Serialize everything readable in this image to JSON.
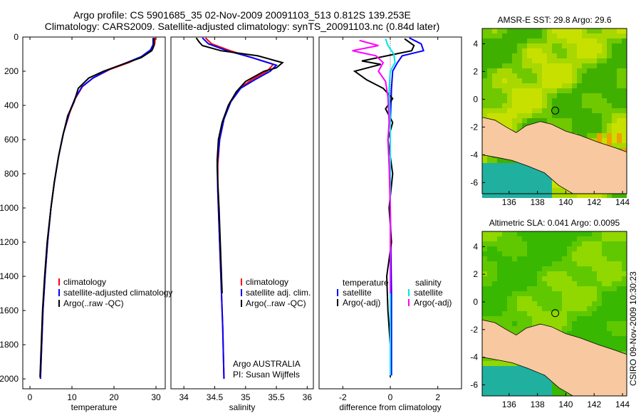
{
  "title_line1": "Argo profile: CS 5901685_35 02-Nov-2009 20091103_513 0.812S 139.253E",
  "title_line2": "Climatology: CARS2009. Satellite-adjusted climatology: synTS_20091103.nc (0.84d later)",
  "side_stamp": "CSIRO 09-Nov-2009 10:30:23",
  "colors": {
    "climatology": "#ff0000",
    "satellite": "#0000ff",
    "argo": "#000000",
    "sal_satellite": "#00e5e5",
    "sal_argo": "#ff00ff",
    "land": "#f8c8a0",
    "sea_deep": "#20b0a0"
  },
  "chart_data": [
    {
      "type": "line",
      "xlabel": "temperature",
      "ylabel": "",
      "xlim": [
        -1.7,
        32.2
      ],
      "ylim": [
        2058,
        0
      ],
      "xticks": [
        "0",
        "10",
        "20",
        "30"
      ],
      "xtick_values": [
        0,
        10,
        20,
        30
      ],
      "yticks": [
        "0",
        "200",
        "400",
        "600",
        "800",
        "1000",
        "1200",
        "1400",
        "1600",
        "1800",
        "2000"
      ],
      "ytick_values": [
        0,
        200,
        400,
        600,
        800,
        1000,
        1200,
        1400,
        1600,
        1800,
        2000
      ],
      "legend": [
        "climatology",
        "satellite-adjusted climatology",
        "Argo(..raw -QC)"
      ],
      "series": [
        {
          "name": "climatology",
          "color": "#ff0000",
          "points": [
            [
              29.8,
              5
            ],
            [
              29.7,
              40
            ],
            [
              29.2,
              70
            ],
            [
              27,
              110
            ],
            [
              23.5,
              150
            ],
            [
              19,
              190
            ],
            [
              15,
              240
            ],
            [
              12.5,
              290
            ],
            [
              10.8,
              360
            ],
            [
              9.5,
              440
            ],
            [
              8,
              560
            ],
            [
              6.8,
              700
            ],
            [
              5.8,
              850
            ],
            [
              5,
              1000
            ],
            [
              4.2,
              1200
            ],
            [
              3.6,
              1400
            ],
            [
              3.1,
              1600
            ],
            [
              2.8,
              1800
            ],
            [
              2.5,
              2000
            ]
          ]
        },
        {
          "name": "satellite-adjusted climatology",
          "color": "#0000ff",
          "points": [
            [
              29.3,
              5
            ],
            [
              29.3,
              45
            ],
            [
              28.7,
              75
            ],
            [
              26.5,
              115
            ],
            [
              23,
              150
            ],
            [
              18.8,
              190
            ],
            [
              15,
              240
            ],
            [
              12.4,
              290
            ],
            [
              10.7,
              360
            ],
            [
              9.4,
              440
            ],
            [
              8,
              560
            ],
            [
              6.8,
              700
            ],
            [
              5.8,
              850
            ],
            [
              5,
              1000
            ],
            [
              4.2,
              1200
            ],
            [
              3.6,
              1400
            ],
            [
              3.1,
              1600
            ],
            [
              2.8,
              1800
            ],
            [
              2.5,
              2000
            ]
          ]
        },
        {
          "name": "Argo(..raw -QC)",
          "color": "#000000",
          "points": [
            [
              29.5,
              5
            ],
            [
              29.5,
              50
            ],
            [
              29,
              80
            ],
            [
              26.5,
              120
            ],
            [
              22,
              160
            ],
            [
              17.5,
              200
            ],
            [
              14,
              240
            ],
            [
              11.5,
              300
            ],
            [
              10.5,
              380
            ],
            [
              9,
              460
            ],
            [
              7.8,
              580
            ],
            [
              6.8,
              700
            ],
            [
              5.8,
              850
            ],
            [
              5,
              1000
            ],
            [
              4.1,
              1200
            ],
            [
              3.5,
              1400
            ],
            [
              3.0,
              1600
            ],
            [
              2.7,
              1800
            ],
            [
              2.4,
              1990
            ]
          ]
        }
      ]
    },
    {
      "type": "line",
      "xlabel": "salinity",
      "ylabel": "",
      "xlim": [
        33.79,
        36.1
      ],
      "ylim": [
        2058,
        0
      ],
      "xticks": [
        "34",
        "34.5",
        "35",
        "35.5",
        "36"
      ],
      "xtick_values": [
        34,
        34.5,
        35,
        35.5,
        36
      ],
      "legend": [
        "climatology",
        "satellite adj. clim.",
        "Argo(..raw -QC)"
      ],
      "annotation": [
        "Argo AUSTRALIA",
        "PI: Susan Wijffels"
      ],
      "series": [
        {
          "name": "climatology",
          "color": "#ff0000",
          "points": [
            [
              34.35,
              5
            ],
            [
              34.45,
              40
            ],
            [
              34.75,
              80
            ],
            [
              35.1,
              120
            ],
            [
              35.45,
              160
            ],
            [
              35.35,
              200
            ],
            [
              35.1,
              250
            ],
            [
              34.9,
              300
            ],
            [
              34.75,
              380
            ],
            [
              34.65,
              480
            ],
            [
              34.58,
              600
            ],
            [
              34.55,
              750
            ],
            [
              34.55,
              900
            ],
            [
              34.57,
              1100
            ],
            [
              34.6,
              1400
            ],
            [
              34.63,
              1700
            ],
            [
              34.65,
              2000
            ]
          ]
        },
        {
          "name": "satellite adj. clim.",
          "color": "#0000ff",
          "points": [
            [
              34.3,
              5
            ],
            [
              34.4,
              40
            ],
            [
              34.7,
              80
            ],
            [
              35.1,
              120
            ],
            [
              35.5,
              165
            ],
            [
              35.4,
              200
            ],
            [
              35.15,
              250
            ],
            [
              34.92,
              300
            ],
            [
              34.76,
              380
            ],
            [
              34.65,
              480
            ],
            [
              34.58,
              600
            ],
            [
              34.54,
              750
            ],
            [
              34.55,
              900
            ],
            [
              34.57,
              1100
            ],
            [
              34.6,
              1400
            ],
            [
              34.63,
              1700
            ],
            [
              34.65,
              2000
            ]
          ]
        },
        {
          "name": "Argo(..raw -QC)",
          "color": "#000000",
          "points": [
            [
              34.2,
              5
            ],
            [
              34.25,
              30
            ],
            [
              34.3,
              50
            ],
            [
              34.6,
              80
            ],
            [
              35.2,
              110
            ],
            [
              35.4,
              130
            ],
            [
              35.6,
              150
            ],
            [
              35.5,
              180
            ],
            [
              35.3,
              200
            ],
            [
              35.0,
              260
            ],
            [
              34.85,
              320
            ],
            [
              34.72,
              400
            ],
            [
              34.62,
              500
            ],
            [
              34.56,
              600
            ],
            [
              34.54,
              720
            ],
            [
              34.55,
              850
            ],
            [
              34.57,
              1000
            ],
            [
              34.59,
              1200
            ],
            [
              34.62,
              1500
            ]
          ]
        }
      ]
    },
    {
      "type": "line",
      "xlabel": "difference from climatology",
      "ylabel": "",
      "xlim": [
        -3,
        3
      ],
      "ylim": [
        2058,
        0
      ],
      "xticks": [
        "-2",
        "0",
        "2"
      ],
      "xtick_values": [
        -2,
        0,
        2
      ],
      "legend_temperature": [
        "temperature",
        "satellite",
        "Argo(-adj)"
      ],
      "legend_salinity": [
        "salinity",
        "satellite",
        "Argo(-adj)"
      ],
      "series": [
        {
          "name": "temperature satellite",
          "color": "#0000ff",
          "points": [
            [
              0.8,
              5
            ],
            [
              1.3,
              40
            ],
            [
              1.4,
              80
            ],
            [
              0.5,
              110
            ],
            [
              0.3,
              150
            ],
            [
              0.1,
              200
            ],
            [
              0.05,
              300
            ],
            [
              0,
              500
            ],
            [
              0,
              1000
            ],
            [
              0.05,
              1500
            ],
            [
              0.05,
              1980
            ]
          ]
        },
        {
          "name": "temperature Argo(-adj)",
          "color": "#000000",
          "points": [
            [
              0.6,
              10
            ],
            [
              1.0,
              50
            ],
            [
              0.9,
              80
            ],
            [
              0.2,
              100
            ],
            [
              -1.2,
              140
            ],
            [
              -0.4,
              160
            ],
            [
              -1.5,
              200
            ],
            [
              -1.0,
              250
            ],
            [
              -0.3,
              300
            ],
            [
              0.1,
              360
            ],
            [
              -0.2,
              420
            ],
            [
              0.1,
              500
            ],
            [
              -0.1,
              600
            ],
            [
              0.1,
              800
            ],
            [
              -0.05,
              1000
            ],
            [
              0.05,
              1200
            ],
            [
              -0.15,
              1400
            ],
            [
              -0.1,
              1600
            ],
            [
              0,
              1800
            ],
            [
              0,
              1990
            ]
          ]
        },
        {
          "name": "salinity satellite",
          "color": "#00e5e5",
          "points": [
            [
              -0.2,
              10
            ],
            [
              -0.1,
              50
            ],
            [
              0.15,
              100
            ],
            [
              0.2,
              150
            ],
            [
              0,
              200
            ],
            [
              -0.05,
              300
            ],
            [
              0,
              500
            ],
            [
              0,
              1000
            ],
            [
              0,
              1500
            ],
            [
              0,
              1980
            ]
          ]
        },
        {
          "name": "salinity Argo(-adj)",
          "color": "#ff00ff",
          "points": [
            [
              -1.3,
              20
            ],
            [
              -0.5,
              50
            ],
            [
              -1.6,
              80
            ],
            [
              -0.6,
              110
            ],
            [
              -0.3,
              150
            ],
            [
              -0.5,
              200
            ],
            [
              -0.2,
              260
            ],
            [
              -0.1,
              350
            ],
            [
              -0.05,
              500
            ],
            [
              -0.1,
              600
            ],
            [
              -0.05,
              750
            ],
            [
              0,
              1000
            ],
            [
              0,
              1500
            ]
          ]
        }
      ]
    },
    {
      "type": "heatmap",
      "title": "AMSR-E SST: 29.8  Argo: 29.6",
      "xlim": [
        134.1,
        144.3
      ],
      "ylim": [
        -6.8,
        5.1
      ],
      "xticks": [
        "136",
        "138",
        "140",
        "142",
        "144"
      ],
      "xtick_values": [
        136,
        138,
        140,
        142,
        144
      ],
      "yticks": [
        "4",
        "2",
        "0",
        "-2",
        "-4",
        "-6"
      ],
      "ytick_values": [
        4,
        2,
        0,
        -2,
        -4,
        -6
      ],
      "marker": {
        "lon": 139.253,
        "lat": -0.812
      }
    },
    {
      "type": "heatmap",
      "title": "Altimetric SLA: 0.041  Argo: 0.0095",
      "xlim": [
        134.1,
        144.3
      ],
      "ylim": [
        -6.8,
        5.1
      ],
      "xticks": [
        "136",
        "138",
        "140",
        "142",
        "144"
      ],
      "xtick_values": [
        136,
        138,
        140,
        142,
        144
      ],
      "yticks": [
        "4",
        "2",
        "0",
        "-2",
        "-4",
        "-6"
      ],
      "ytick_values": [
        4,
        2,
        0,
        -2,
        -4,
        -6
      ],
      "marker": {
        "lon": 139.253,
        "lat": -0.812
      }
    }
  ]
}
